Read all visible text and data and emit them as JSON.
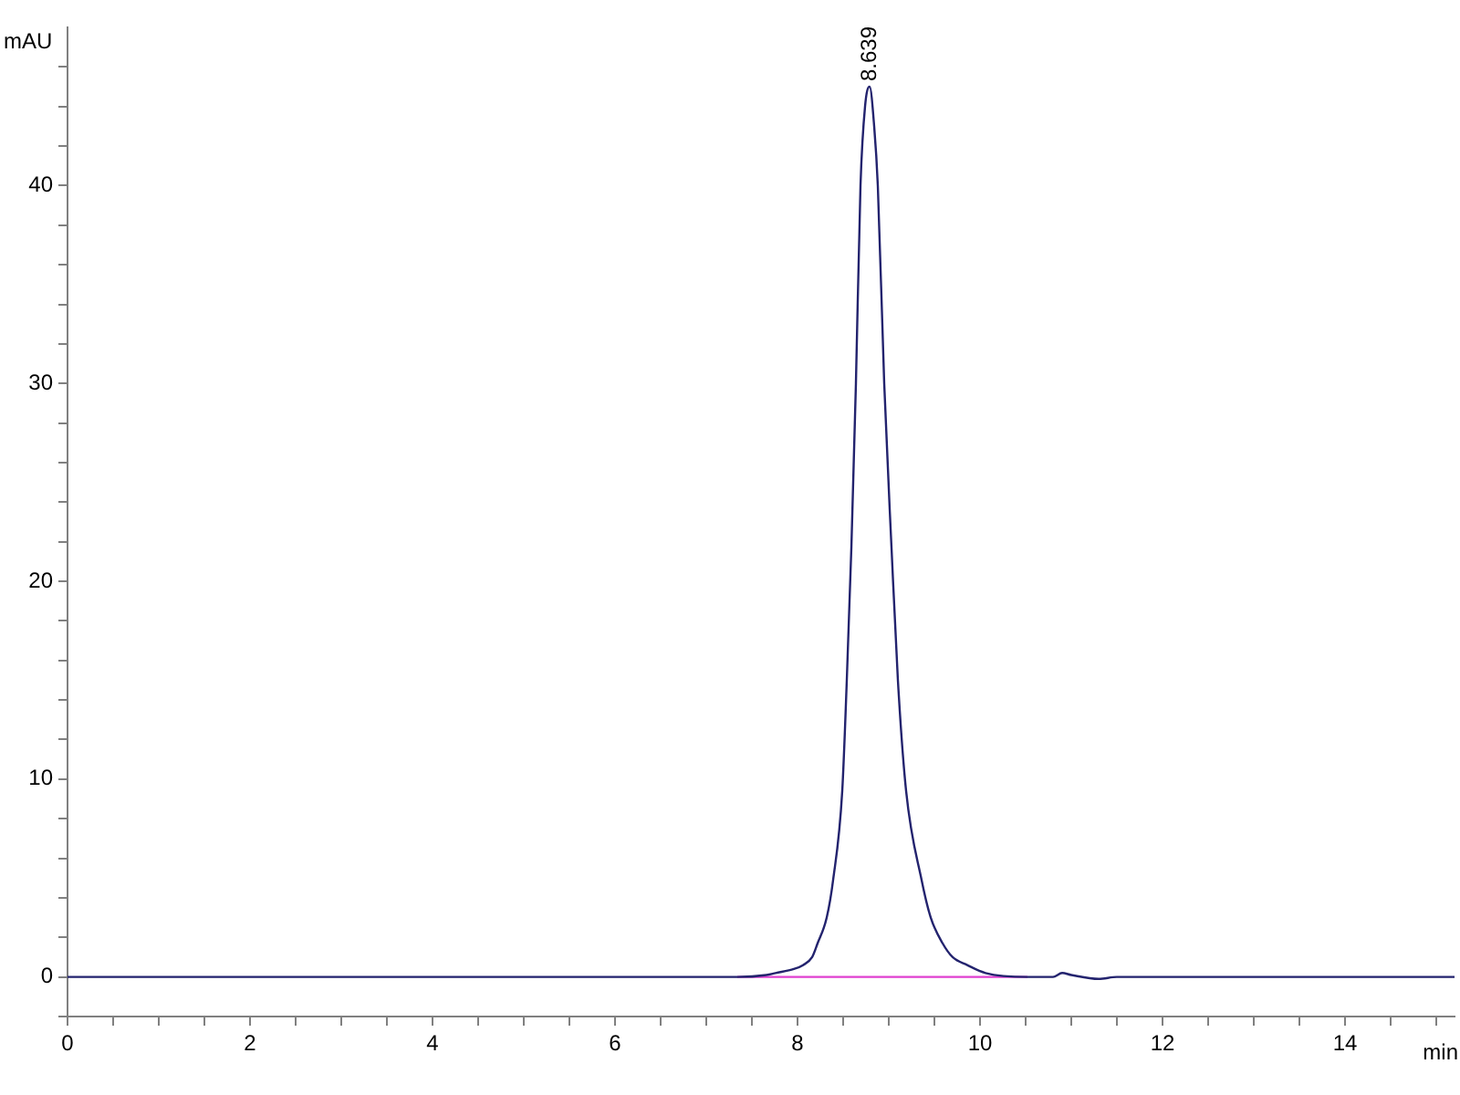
{
  "chart_data": {
    "type": "line",
    "xlabel": "min",
    "ylabel": "mAU",
    "marker": "none",
    "annotations": [
      {
        "text": "8.639",
        "x": 8.79,
        "y": 45
      }
    ],
    "xlim": [
      0,
      15.2
    ],
    "ylim": [
      -2,
      48
    ],
    "xticks": [
      0,
      {
        "value": 0.5,
        "label": null
      },
      {
        "value": 1,
        "label": null
      },
      {
        "value": 1.5,
        "label": null
      },
      2,
      {
        "value": 2.5,
        "label": null
      },
      {
        "value": 3,
        "label": null
      },
      {
        "value": 3.5,
        "label": null
      },
      4,
      {
        "value": 4.5,
        "label": null
      },
      {
        "value": 5,
        "label": null
      },
      {
        "value": 5.5,
        "label": null
      },
      6,
      {
        "value": 6.5,
        "label": null
      },
      {
        "value": 7,
        "label": null
      },
      {
        "value": 7.5,
        "label": null
      },
      8,
      {
        "value": 8.5,
        "label": null
      },
      {
        "value": 9,
        "label": null
      },
      {
        "value": 9.5,
        "label": null
      },
      10,
      {
        "value": 10.5,
        "label": null
      },
      {
        "value": 11,
        "label": null
      },
      {
        "value": 11.5,
        "label": null
      },
      12,
      {
        "value": 12.5,
        "label": null
      },
      {
        "value": 13,
        "label": null
      },
      {
        "value": 13.5,
        "label": null
      },
      14,
      {
        "value": 14.5,
        "label": null
      },
      {
        "value": 15,
        "label": null
      }
    ],
    "yticks": [
      {
        "value": -2,
        "label": null
      },
      0,
      {
        "value": 2,
        "label": null
      },
      {
        "value": 4,
        "label": null
      },
      {
        "value": 6,
        "label": null
      },
      {
        "value": 8,
        "label": null
      },
      10,
      {
        "value": 12,
        "label": null
      },
      {
        "value": 14,
        "label": null
      },
      {
        "value": 16,
        "label": null
      },
      {
        "value": 18,
        "label": null
      },
      20,
      {
        "value": 22,
        "label": null
      },
      {
        "value": 24,
        "label": null
      },
      {
        "value": 26,
        "label": null
      },
      {
        "value": 28,
        "label": null
      },
      30,
      {
        "value": 32,
        "label": null
      },
      {
        "value": 34,
        "label": null
      },
      {
        "value": 36,
        "label": null
      },
      {
        "value": 38,
        "label": null
      },
      40,
      {
        "value": 42,
        "label": null
      },
      {
        "value": 44,
        "label": null
      },
      {
        "value": 46,
        "label": null
      }
    ],
    "series": [
      {
        "color": "#23236e",
        "x": [
          0,
          1,
          2,
          3,
          4,
          5,
          6,
          7,
          7.34,
          7.66,
          7.76,
          7.96,
          8.06,
          8.16,
          8.22,
          8.32,
          8.39,
          8.49,
          8.54,
          8.59,
          8.64,
          8.69,
          8.74,
          8.79,
          8.84,
          8.88,
          8.95,
          9.03,
          9.1,
          9.19,
          9.36,
          9.46,
          9.59,
          9.7,
          9.86,
          10.06,
          10.52,
          10.8,
          10.9,
          11.0,
          11.3,
          11.5,
          12,
          13,
          14,
          15.2
        ],
        "values": [
          0,
          0,
          0,
          0,
          0,
          0,
          0,
          0,
          0,
          0.1,
          0.2,
          0.4,
          0.6,
          1.0,
          1.7,
          3,
          4.9,
          9.4,
          15,
          21.7,
          30,
          40,
          44,
          45,
          43,
          40,
          30,
          21.7,
          15,
          9.4,
          4.9,
          3,
          1.7,
          1.0,
          0.6,
          0.2,
          0,
          0,
          0.2,
          0.1,
          -0.1,
          0,
          0,
          0,
          0,
          0
        ]
      },
      {
        "color": "#e040d0",
        "x": [
          7.34,
          10.52
        ],
        "values": [
          0,
          0
        ]
      }
    ]
  }
}
